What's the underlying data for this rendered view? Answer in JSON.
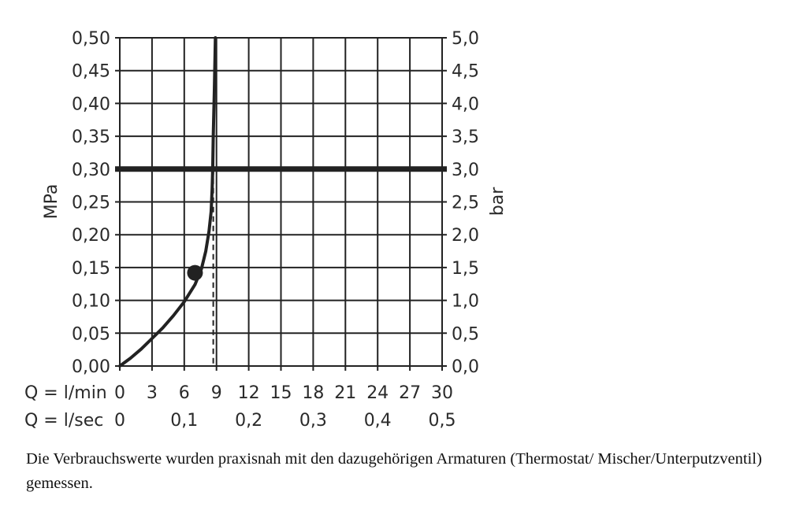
{
  "chart_data": {
    "type": "line",
    "xlabel_rows": [
      {
        "label": "Q = l/min",
        "ticks": [
          "0",
          "3",
          "6",
          "9",
          "12",
          "15",
          "18",
          "21",
          "24",
          "27",
          "30"
        ],
        "tick_values": [
          0,
          3,
          6,
          9,
          12,
          15,
          18,
          21,
          24,
          27,
          30
        ]
      },
      {
        "label": "Q = l/sec",
        "ticks": [
          "0",
          "0,1",
          "0,2",
          "0,3",
          "0,4",
          "0,5"
        ],
        "tick_values": [
          0,
          6,
          12,
          18,
          24,
          30
        ]
      }
    ],
    "xlim": [
      0,
      30
    ],
    "ylabel_left": "MPa",
    "ylabel_right": "bar",
    "ylim": [
      0,
      0.5
    ],
    "y_ticks_left": [
      "0,00",
      "0,05",
      "0,10",
      "0,15",
      "0,20",
      "0,25",
      "0,30",
      "0,35",
      "0,40",
      "0,45",
      "0,50"
    ],
    "y_ticks_right": [
      "0,0",
      "0,5",
      "1,0",
      "1,5",
      "2,0",
      "2,5",
      "3,0",
      "3,5",
      "4,0",
      "4,5",
      "5,0"
    ],
    "y_tick_values": [
      0,
      0.05,
      0.1,
      0.15,
      0.2,
      0.25,
      0.3,
      0.35,
      0.4,
      0.45,
      0.5
    ],
    "grid": true,
    "series": [
      {
        "x": [
          0,
          1,
          2,
          3,
          4,
          5,
          6,
          7,
          7.6,
          8.0,
          8.3,
          8.5,
          8.6,
          8.65,
          8.7,
          8.8,
          8.9
        ],
        "y": [
          0,
          0.012,
          0.026,
          0.042,
          0.058,
          0.077,
          0.098,
          0.124,
          0.148,
          0.175,
          0.205,
          0.235,
          0.27,
          0.3,
          0.35,
          0.42,
          0.5
        ]
      }
    ],
    "marker": {
      "x": 7.0,
      "y": 0.142
    },
    "reference_line_y": 0.3,
    "reference_dashed_x": 8.7
  },
  "caption": "Die Verbrauchswerte wurden praxisnah mit den dazugehörigen Armaturen (Thermostat/ Mischer/Unterputzventil) gemessen."
}
